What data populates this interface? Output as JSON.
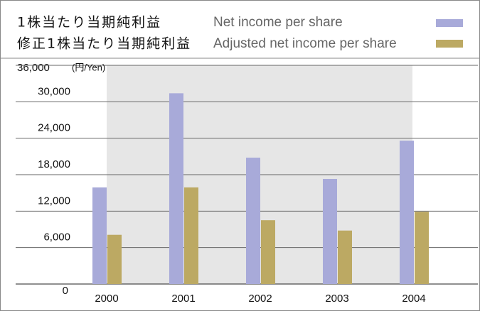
{
  "chart_data": {
    "type": "bar",
    "y_unit_label": "(円/Yen)",
    "categories": [
      "2000",
      "2001",
      "2002",
      "2003",
      "2004"
    ],
    "series": [
      {
        "name": "Net income per share",
        "name_ja": "1株当たり当期純利益",
        "color": "#a8aad9",
        "values": [
          15900,
          31400,
          20800,
          17300,
          23600
        ]
      },
      {
        "name": "Adjusted net income per share",
        "name_ja": "修正1株当たり当期純利益",
        "color": "#bca963",
        "values": [
          8100,
          15900,
          10500,
          8800,
          11900
        ]
      }
    ],
    "ylim": [
      0,
      36000
    ],
    "yticks": [
      0,
      {
        "value": 6000,
        "label": "6,000"
      },
      {
        "value": 12000,
        "label": "12,000"
      },
      {
        "value": 18000,
        "label": "18,000"
      },
      {
        "value": 24000,
        "label": "24,000"
      },
      {
        "value": 30000,
        "label": "30,000"
      },
      {
        "value": 36000,
        "label": "36,000"
      }
    ],
    "grid": true
  }
}
